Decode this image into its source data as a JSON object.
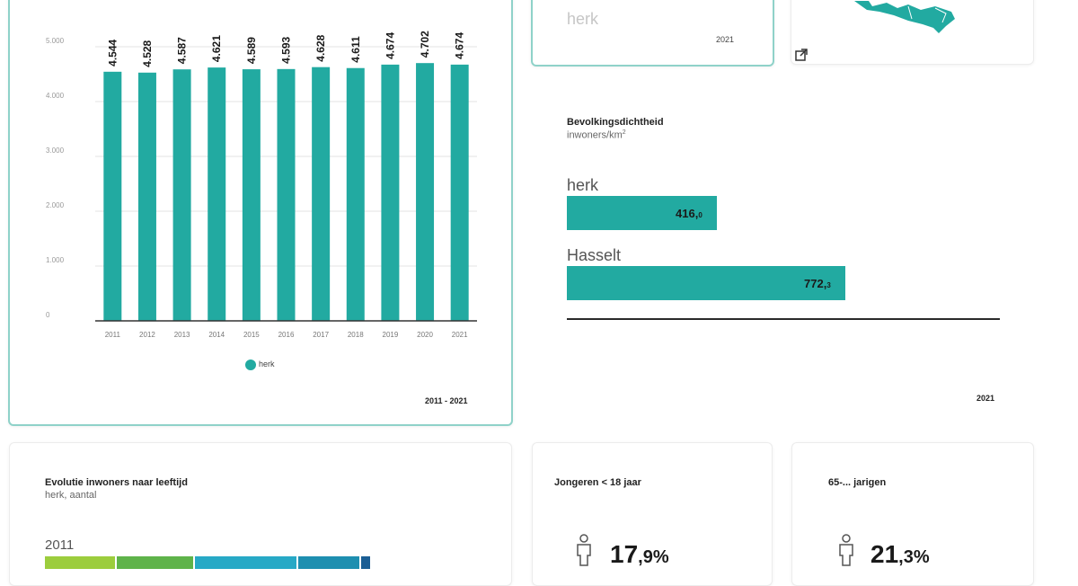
{
  "population_card": {
    "date_range": "2011 - 2021",
    "legend": "herk",
    "chart_data": {
      "type": "bar",
      "categories": [
        "2011",
        "2012",
        "2013",
        "2014",
        "2015",
        "2016",
        "2017",
        "2018",
        "2019",
        "2020",
        "2021"
      ],
      "series": [
        {
          "name": "herk",
          "values": [
            4544,
            4528,
            4587,
            4621,
            4589,
            4593,
            4628,
            4611,
            4674,
            4702,
            4674
          ],
          "color": "#22aaa1"
        }
      ],
      "value_labels": [
        "4.544",
        "4.528",
        "4.587",
        "4.621",
        "4.589",
        "4.593",
        "4.628",
        "4.611",
        "4.674",
        "4.702",
        "4.674"
      ],
      "y_ticks": [
        {
          "value": 0,
          "label": "0"
        },
        {
          "value": 1000,
          "label": "1.000"
        },
        {
          "value": 2000,
          "label": "2.000"
        },
        {
          "value": 3000,
          "label": "3.000"
        },
        {
          "value": 4000,
          "label": "4.000"
        },
        {
          "value": 5000,
          "label": "5.000"
        }
      ],
      "ylim": [
        0,
        5000
      ],
      "grid": true,
      "legend_position": "bottom"
    }
  },
  "inhabitants_card": {
    "municipality": "herk",
    "year": "2021"
  },
  "map_card": {
    "map_color": "#22aaa1",
    "icon": "external-link-icon"
  },
  "density_card": {
    "title": "Bevolkingsdichtheid",
    "unit_prefix": "inwoners/km",
    "unit_sup": "2",
    "year": "2021",
    "chart_data": {
      "type": "bar",
      "orientation": "horizontal",
      "categories": [
        "herk",
        "Hasselt"
      ],
      "values": [
        416.0,
        772.3
      ],
      "value_labels_main": [
        "416,",
        "772,"
      ],
      "value_labels_dec": [
        "0",
        "3"
      ],
      "color": "#22aaa1"
    }
  },
  "age_card": {
    "title": "Evolutie inwoners naar leeftijd",
    "subtitle": "herk, aantal",
    "year_label": "2011",
    "segment_colors": [
      "#9ccd3d",
      "#5fb34a",
      "#27a9c6",
      "#1e8fb0",
      "#1b5e94",
      "#3b4c9c"
    ]
  },
  "youth_card": {
    "title": "Jongeren < 18 jaar",
    "value_main": "17",
    "value_rest": ",9%"
  },
  "elderly_card": {
    "title": "65-... jarigen",
    "value_main": "21",
    "value_rest": ",3%"
  }
}
